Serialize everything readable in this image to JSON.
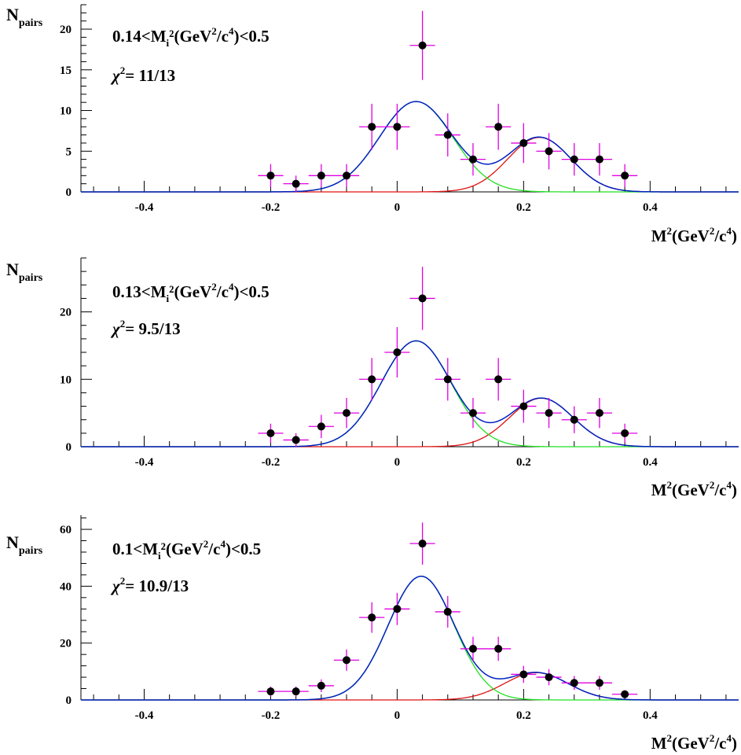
{
  "colors": {
    "data_points": "#000000",
    "error_bars": "#e000e0",
    "total_fit": "#0020c0",
    "peak1_fit": "#20e020",
    "peak2_fit": "#e01010"
  },
  "chart_data": [
    {
      "type": "scatter",
      "ylabel_main": "N",
      "ylabel_sub": "pairs",
      "xlabel": "M²(GeV²/c⁴)",
      "xlabel_main": "M",
      "xlabel_sup1": "2",
      "xlabel_mid": "(GeV",
      "xlabel_sup2": "2",
      "xlabel_mid2": "/c",
      "xlabel_sup3": "4",
      "xlabel_end": ")",
      "annotation": {
        "cut_pre": "0.14<M",
        "cut_sub": "i",
        "cut_mid": "²(GeV",
        "cut_sup1": "2",
        "cut_mid2": "/c",
        "cut_sup2": "4",
        "cut_end": ")<0.5",
        "chi_sym": "χ",
        "chi_sup": "2",
        "chi_val": "= 11/13"
      },
      "xlim": [
        -0.5,
        0.54
      ],
      "ylim": [
        0,
        23
      ],
      "xticks": [
        -0.4,
        -0.2,
        0,
        0.2,
        0.4
      ],
      "xtick_labels": [
        "-0.4",
        "-0.2",
        "0",
        "0.2",
        "0.4"
      ],
      "yticks": [
        0,
        5,
        10,
        15,
        20
      ],
      "ytick_labels": [
        "0",
        "5",
        "10",
        "15",
        "20"
      ],
      "x": [
        -0.2,
        -0.16,
        -0.12,
        -0.08,
        -0.04,
        0.0,
        0.04,
        0.08,
        0.12,
        0.16,
        0.2,
        0.24,
        0.28,
        0.32,
        0.36
      ],
      "y": [
        2,
        1,
        2,
        2,
        8,
        8,
        18,
        7,
        4,
        8,
        6,
        5,
        4,
        4,
        2
      ],
      "fit": {
        "peak1": {
          "amp": 11.1,
          "mean": 0.03,
          "sigma": 0.058
        },
        "peak2": {
          "amp": 6.7,
          "mean": 0.225,
          "sigma": 0.05
        }
      }
    },
    {
      "type": "scatter",
      "ylabel_main": "N",
      "ylabel_sub": "pairs",
      "xlabel": "M²(GeV²/c⁴)",
      "xlabel_main": "M",
      "xlabel_sup1": "2",
      "xlabel_mid": "(GeV",
      "xlabel_sup2": "2",
      "xlabel_mid2": "/c",
      "xlabel_sup3": "4",
      "xlabel_end": ")",
      "annotation": {
        "cut_pre": "0.13<M",
        "cut_sub": "i",
        "cut_mid": "²(GeV",
        "cut_sup1": "2",
        "cut_mid2": "/c",
        "cut_sup2": "4",
        "cut_end": ")<0.5",
        "chi_sym": "χ",
        "chi_sup": "2",
        "chi_val": "= 9.5/13"
      },
      "xlim": [
        -0.5,
        0.54
      ],
      "ylim": [
        0,
        28
      ],
      "xticks": [
        -0.4,
        -0.2,
        0,
        0.2,
        0.4
      ],
      "xtick_labels": [
        "-0.4",
        "-0.2",
        "0",
        "0.2",
        "0.4"
      ],
      "yticks": [
        0,
        10,
        20
      ],
      "ytick_labels": [
        "0",
        "10",
        "20"
      ],
      "x": [
        -0.2,
        -0.16,
        -0.12,
        -0.08,
        -0.04,
        0.0,
        0.04,
        0.08,
        0.12,
        0.16,
        0.2,
        0.24,
        0.28,
        0.32,
        0.36
      ],
      "y": [
        2,
        1,
        3,
        5,
        10,
        14,
        22,
        10,
        5,
        10,
        6,
        5,
        4,
        5,
        2
      ],
      "fit": {
        "peak1": {
          "amp": 15.7,
          "mean": 0.03,
          "sigma": 0.055
        },
        "peak2": {
          "amp": 7.2,
          "mean": 0.228,
          "sigma": 0.05
        }
      }
    },
    {
      "type": "scatter",
      "ylabel_main": "N",
      "ylabel_sub": "pairs",
      "xlabel": "M²(GeV²/c⁴)",
      "xlabel_main": "M",
      "xlabel_sup1": "2",
      "xlabel_mid": "(GeV",
      "xlabel_sup2": "2",
      "xlabel_mid2": "/c",
      "xlabel_sup3": "4",
      "xlabel_end": ")",
      "annotation": {
        "cut_pre": "0.1<M",
        "cut_sub": "i",
        "cut_mid": "²(GeV",
        "cut_sup1": "2",
        "cut_mid2": "/c",
        "cut_sup2": "4",
        "cut_end": ")<0.5",
        "chi_sym": "χ",
        "chi_sup": "2",
        "chi_val": "= 10.9/13"
      },
      "xlim": [
        -0.5,
        0.54
      ],
      "ylim": [
        0,
        65
      ],
      "xticks": [
        -0.4,
        -0.2,
        0,
        0.2,
        0.4
      ],
      "xtick_labels": [
        "-0.4",
        "-0.2",
        "0",
        "0.2",
        "0.4"
      ],
      "yticks": [
        0,
        20,
        40,
        60
      ],
      "ytick_labels": [
        "0",
        "20",
        "40",
        "60"
      ],
      "x": [
        -0.2,
        -0.16,
        -0.12,
        -0.08,
        -0.04,
        0.0,
        0.04,
        0.08,
        0.12,
        0.16,
        0.2,
        0.24,
        0.28,
        0.32,
        0.36
      ],
      "y": [
        3,
        3,
        5,
        14,
        29,
        32,
        55,
        31,
        18,
        18,
        9,
        8,
        6,
        6,
        2
      ],
      "fit": {
        "peak1": {
          "amp": 43.5,
          "mean": 0.038,
          "sigma": 0.052
        },
        "peak2": {
          "amp": 9.6,
          "mean": 0.22,
          "sigma": 0.05
        }
      }
    }
  ]
}
